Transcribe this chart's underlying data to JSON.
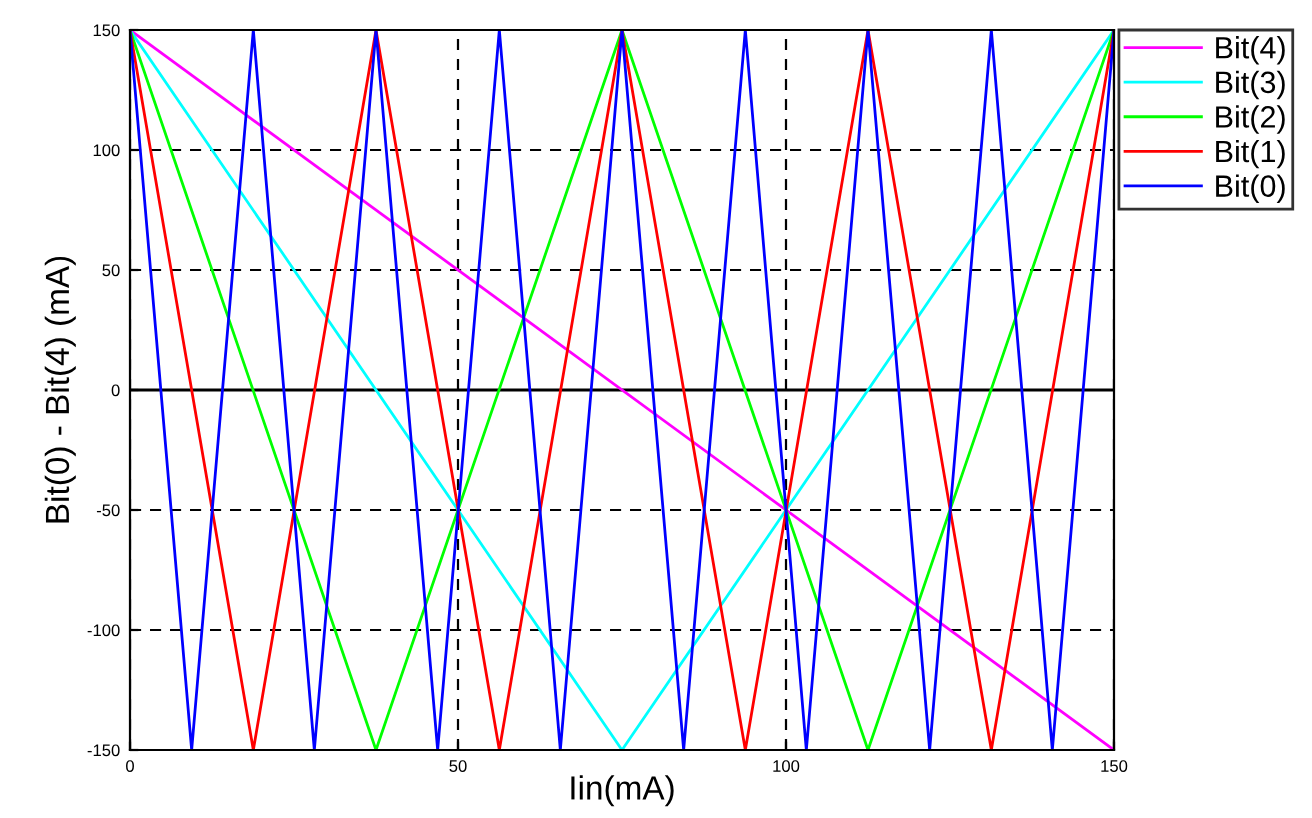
{
  "chart_data": {
    "type": "line",
    "xlabel": "Iin(mA)",
    "ylabel": "Bit(0) - Bit(4) (mA)",
    "xlim": [
      0,
      150
    ],
    "ylim": [
      -150,
      150
    ],
    "xticks": [
      0,
      50,
      100,
      150
    ],
    "yticks": [
      -150,
      -100,
      -50,
      0,
      50,
      100,
      150
    ],
    "grid": true,
    "legend": "top right",
    "marker": "none",
    "line_style": "solid",
    "ref_lines": [
      {
        "axis": "y",
        "value": 0,
        "color": "#000000",
        "line_style": "solid"
      }
    ],
    "series": [
      {
        "name": "Bit(4)",
        "color": "#ff00ff",
        "x": [
          0,
          150
        ],
        "values": [
          150,
          -150
        ]
      },
      {
        "name": "Bit(3)",
        "color": "#00ffff",
        "x": [
          0,
          75,
          150
        ],
        "values": [
          150,
          -150,
          150
        ]
      },
      {
        "name": "Bit(2)",
        "color": "#00ff00",
        "x": [
          0,
          37.5,
          75,
          112.5,
          150
        ],
        "values": [
          150,
          -150,
          150,
          -150,
          150
        ]
      },
      {
        "name": "Bit(1)",
        "color": "#ff0000",
        "x": [
          0,
          18.8,
          37.5,
          56.3,
          75,
          93.8,
          112.5,
          131.3,
          150
        ],
        "values": [
          150,
          -150,
          150,
          -150,
          150,
          -150,
          150,
          -150,
          150
        ]
      },
      {
        "name": "Bit(0)",
        "color": "#0000ff",
        "x": [
          0,
          9.4,
          18.8,
          28.1,
          37.5,
          46.9,
          56.3,
          65.6,
          75,
          84.4,
          93.8,
          103.1,
          112.5,
          121.9,
          131.3,
          140.6,
          150
        ],
        "values": [
          150,
          -150,
          150,
          -150,
          150,
          -150,
          150,
          -150,
          150,
          -150,
          150,
          -150,
          150,
          -150,
          150,
          -150,
          150
        ]
      }
    ]
  }
}
